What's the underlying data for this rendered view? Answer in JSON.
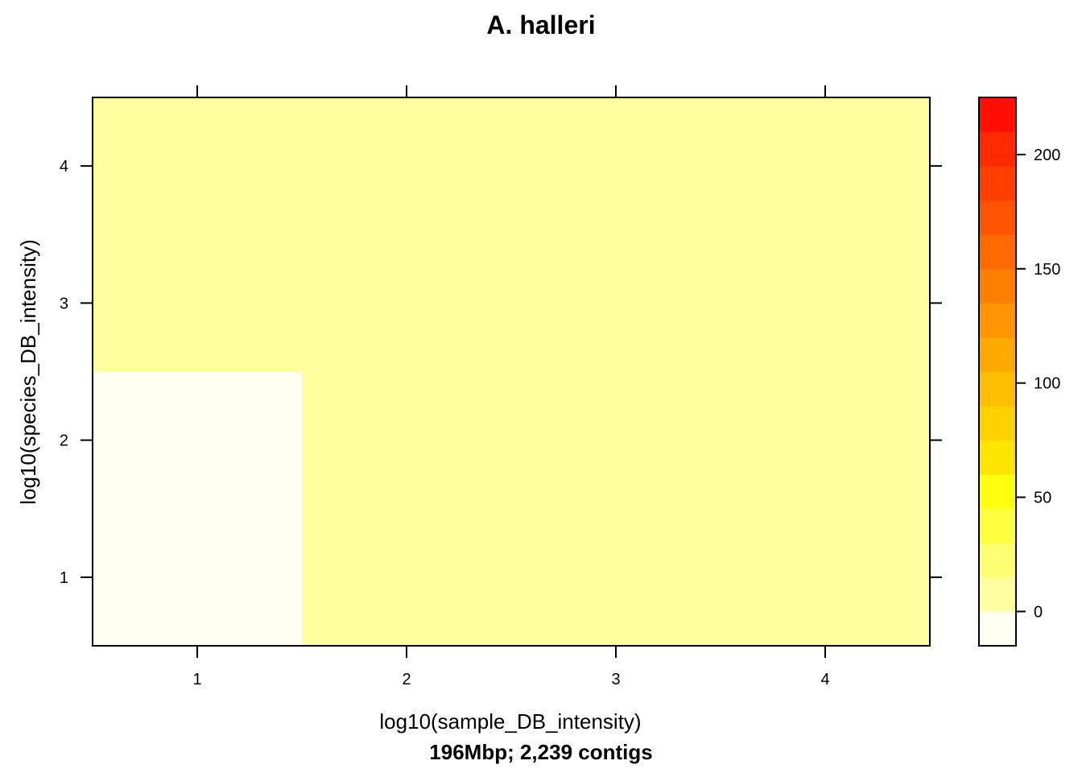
{
  "chart_data": {
    "type": "heatmap",
    "title": "A. halleri",
    "xlabel": "log10(sample_DB_intensity)",
    "ylabel": "log10(species_DB_intensity)",
    "sublabel": "196Mbp; 2,239 contigs",
    "x_ticks": [
      "1",
      "2",
      "3",
      "4"
    ],
    "y_ticks": [
      "1",
      "2",
      "3",
      "4"
    ],
    "xlim": [
      0.5,
      4.5
    ],
    "ylim": [
      0.5,
      4.5
    ],
    "x_centers": [
      1,
      2,
      3,
      4
    ],
    "y_centers": [
      1,
      2,
      3,
      4
    ],
    "values": [
      [
        -15,
        0,
        0,
        0
      ],
      [
        -10,
        0,
        0,
        0
      ],
      [
        0,
        0,
        0,
        0
      ],
      [
        0,
        0,
        0,
        0
      ]
    ],
    "colorbar": {
      "range": [
        -15,
        225
      ],
      "ticks": [
        "0",
        "50",
        "100",
        "150",
        "200"
      ],
      "tick_values": [
        0,
        50,
        100,
        150,
        200
      ],
      "bins": [
        -15,
        0,
        15,
        30,
        45,
        60,
        75,
        90,
        105,
        120,
        135,
        150,
        165,
        180,
        195,
        210,
        225
      ],
      "colors": [
        "#FFFFF2",
        "#FFFFA0",
        "#FFFF73",
        "#FFFF40",
        "#FFFF10",
        "#FFE500",
        "#FFD200",
        "#FFBF00",
        "#FFAA00",
        "#FF9500",
        "#FF8000",
        "#FF6A00",
        "#FF5500",
        "#FF3F00",
        "#FF2A00",
        "#FF1000"
      ]
    },
    "grid": false,
    "legend": "right"
  }
}
